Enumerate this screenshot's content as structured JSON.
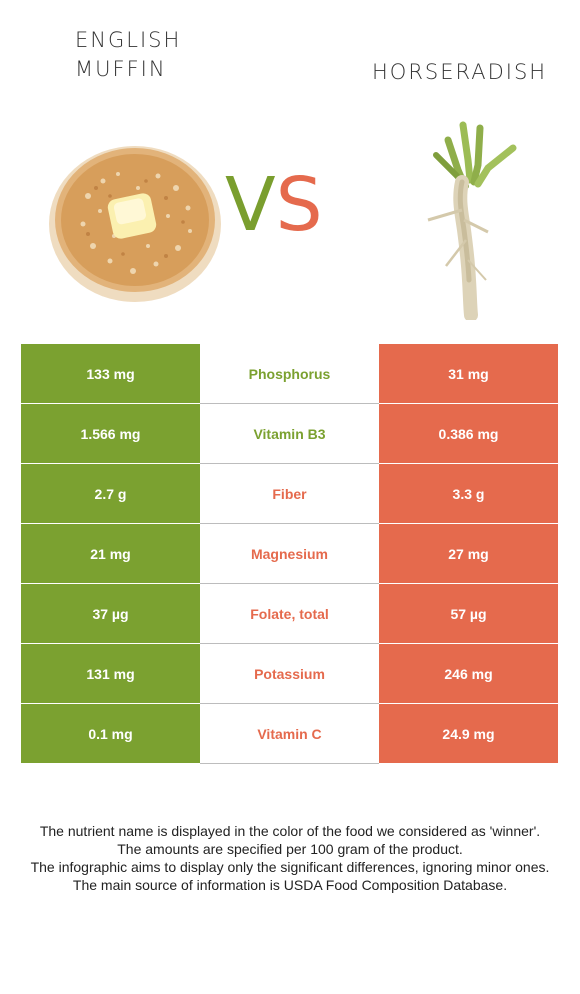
{
  "foods": {
    "left": {
      "name": "ENGLISH MUFFIN",
      "color": "#7ba130"
    },
    "right": {
      "name": "HORSERADISH",
      "color": "#e56a4d"
    }
  },
  "vs": {
    "v": "V",
    "s": "S"
  },
  "nutrients": [
    {
      "name": "Phosphorus",
      "left": "133 mg",
      "right": "31 mg",
      "winner": "left"
    },
    {
      "name": "Vitamin B3",
      "left": "1.566 mg",
      "right": "0.386 mg",
      "winner": "left"
    },
    {
      "name": "Fiber",
      "left": "2.7 g",
      "right": "3.3 g",
      "winner": "right"
    },
    {
      "name": "Magnesium",
      "left": "21 mg",
      "right": "27 mg",
      "winner": "right"
    },
    {
      "name": "Folate, total",
      "left": "37 µg",
      "right": "57 µg",
      "winner": "right"
    },
    {
      "name": "Potassium",
      "left": "131 mg",
      "right": "246 mg",
      "winner": "right"
    },
    {
      "name": "Vitamin C",
      "left": "0.1 mg",
      "right": "24.9 mg",
      "winner": "right"
    }
  ],
  "footnotes": [
    "The nutrient name is displayed in the color of the food we considered as 'winner'.",
    "The amounts are specified per 100 gram of the product.",
    "The infographic aims to display only the significant differences, ignoring minor ones.",
    "The main source of information is USDA Food Composition Database."
  ]
}
